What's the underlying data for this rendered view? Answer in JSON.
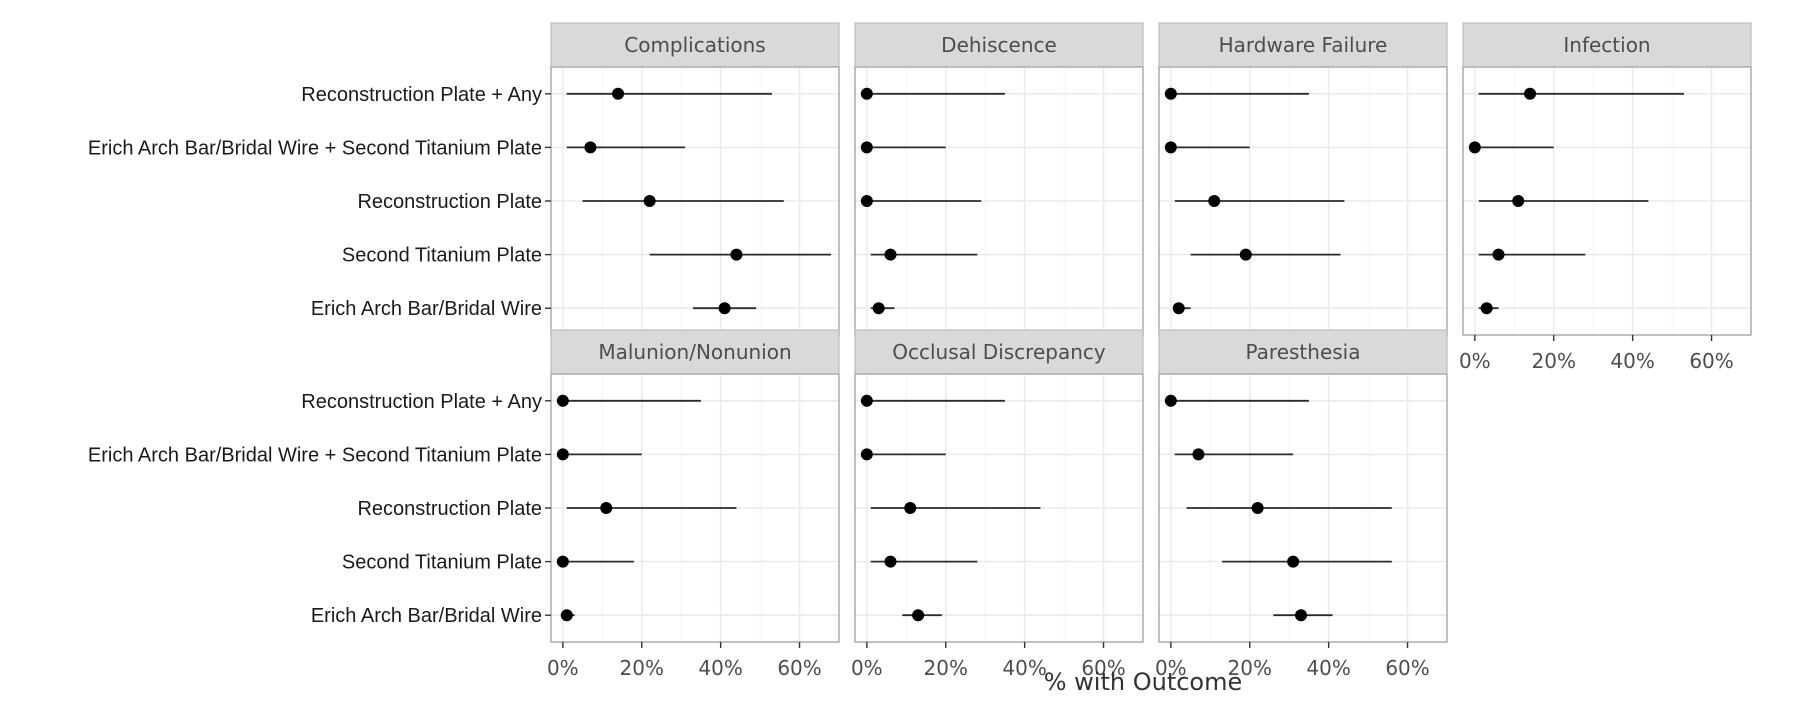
{
  "chart_data": {
    "type": "forest",
    "xlabel": "% with Outcome",
    "ylabel": "",
    "xlim": [
      -3,
      70
    ],
    "xticks": [
      0,
      20,
      40,
      60
    ],
    "xtick_labels": [
      "0%",
      "20%",
      "40%",
      "60%"
    ],
    "grid": true,
    "categories": [
      "Reconstruction Plate + Any",
      "Erich Arch Bar/Bridal Wire + Second Titanium Plate",
      "Reconstruction Plate",
      "Second Titanium Plate",
      "Erich Arch Bar/Bridal Wire"
    ],
    "panels": [
      {
        "name": "Complications",
        "points": [
          {
            "est": 14,
            "lo": 1,
            "hi": 53
          },
          {
            "est": 7,
            "lo": 1,
            "hi": 31
          },
          {
            "est": 22,
            "lo": 5,
            "hi": 56
          },
          {
            "est": 44,
            "lo": 22,
            "hi": 68
          },
          {
            "est": 41,
            "lo": 33,
            "hi": 49
          }
        ]
      },
      {
        "name": "Dehiscence",
        "points": [
          {
            "est": 0,
            "lo": 0,
            "hi": 35
          },
          {
            "est": 0,
            "lo": 0,
            "hi": 20
          },
          {
            "est": 0,
            "lo": 0,
            "hi": 29
          },
          {
            "est": 6,
            "lo": 1,
            "hi": 28
          },
          {
            "est": 3,
            "lo": 1,
            "hi": 7
          }
        ]
      },
      {
        "name": "Hardware Failure",
        "points": [
          {
            "est": 0,
            "lo": 0,
            "hi": 35
          },
          {
            "est": 0,
            "lo": 0,
            "hi": 20
          },
          {
            "est": 11,
            "lo": 1,
            "hi": 44
          },
          {
            "est": 19,
            "lo": 5,
            "hi": 43
          },
          {
            "est": 2,
            "lo": 1,
            "hi": 5
          }
        ]
      },
      {
        "name": "Infection",
        "points": [
          {
            "est": 14,
            "lo": 1,
            "hi": 53
          },
          {
            "est": 0,
            "lo": 0,
            "hi": 20
          },
          {
            "est": 11,
            "lo": 1,
            "hi": 44
          },
          {
            "est": 6,
            "lo": 1,
            "hi": 28
          },
          {
            "est": 3,
            "lo": 1,
            "hi": 6
          }
        ]
      },
      {
        "name": "Malunion/Nonunion",
        "points": [
          {
            "est": 0,
            "lo": 0,
            "hi": 35
          },
          {
            "est": 0,
            "lo": 0,
            "hi": 20
          },
          {
            "est": 11,
            "lo": 1,
            "hi": 44
          },
          {
            "est": 0,
            "lo": 0,
            "hi": 18
          },
          {
            "est": 1,
            "lo": 0,
            "hi": 3
          }
        ]
      },
      {
        "name": "Occlusal Discrepancy",
        "points": [
          {
            "est": 0,
            "lo": 0,
            "hi": 35
          },
          {
            "est": 0,
            "lo": 0,
            "hi": 20
          },
          {
            "est": 11,
            "lo": 1,
            "hi": 44
          },
          {
            "est": 6,
            "lo": 1,
            "hi": 28
          },
          {
            "est": 13,
            "lo": 9,
            "hi": 19
          }
        ]
      },
      {
        "name": "Paresthesia",
        "points": [
          {
            "est": 0,
            "lo": 0,
            "hi": 35
          },
          {
            "est": 7,
            "lo": 1,
            "hi": 31
          },
          {
            "est": 22,
            "lo": 4,
            "hi": 56
          },
          {
            "est": 31,
            "lo": 13,
            "hi": 56
          },
          {
            "est": 33,
            "lo": 26,
            "hi": 41
          }
        ]
      }
    ]
  }
}
